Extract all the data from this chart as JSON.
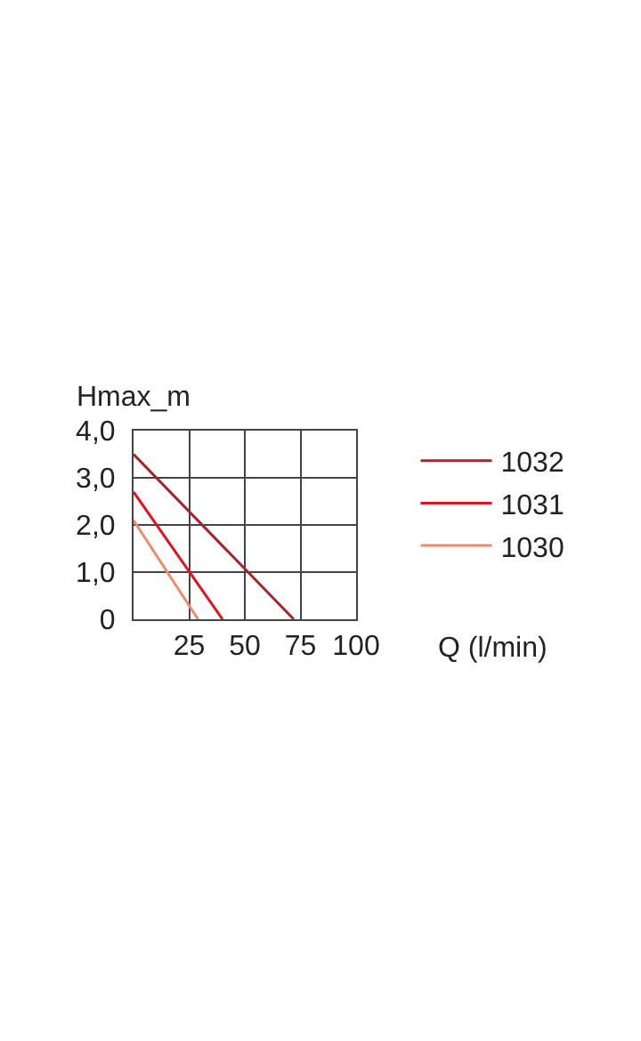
{
  "chart_data": {
    "type": "line",
    "xlabel": "Q (l/min)",
    "ylabel": "Hmax_m",
    "xlim": [
      0,
      100
    ],
    "xticks": [
      {
        "value": 0,
        "label": null
      },
      25,
      50,
      75,
      100
    ],
    "ylim": [
      0,
      4
    ],
    "yticks": [
      {
        "value": 0,
        "label": "0"
      },
      {
        "value": 1,
        "label": "1,0"
      },
      {
        "value": 2,
        "label": "2,0"
      },
      {
        "value": 3,
        "label": "3,0"
      },
      {
        "value": 4,
        "label": "4,0"
      }
    ],
    "grid": true,
    "legend": "right",
    "marker": "none",
    "line_style": "solid",
    "series": [
      {
        "name": "1032",
        "color": "#a0282d",
        "x": [
          0,
          72
        ],
        "values": [
          3.5,
          0
        ]
      },
      {
        "name": "1031",
        "color": "#e3101e",
        "x": [
          0,
          40
        ],
        "values": [
          2.7,
          0
        ]
      },
      {
        "name": "1030",
        "color": "#f08a6c",
        "x": [
          0,
          29
        ],
        "values": [
          2.1,
          0
        ]
      }
    ]
  }
}
